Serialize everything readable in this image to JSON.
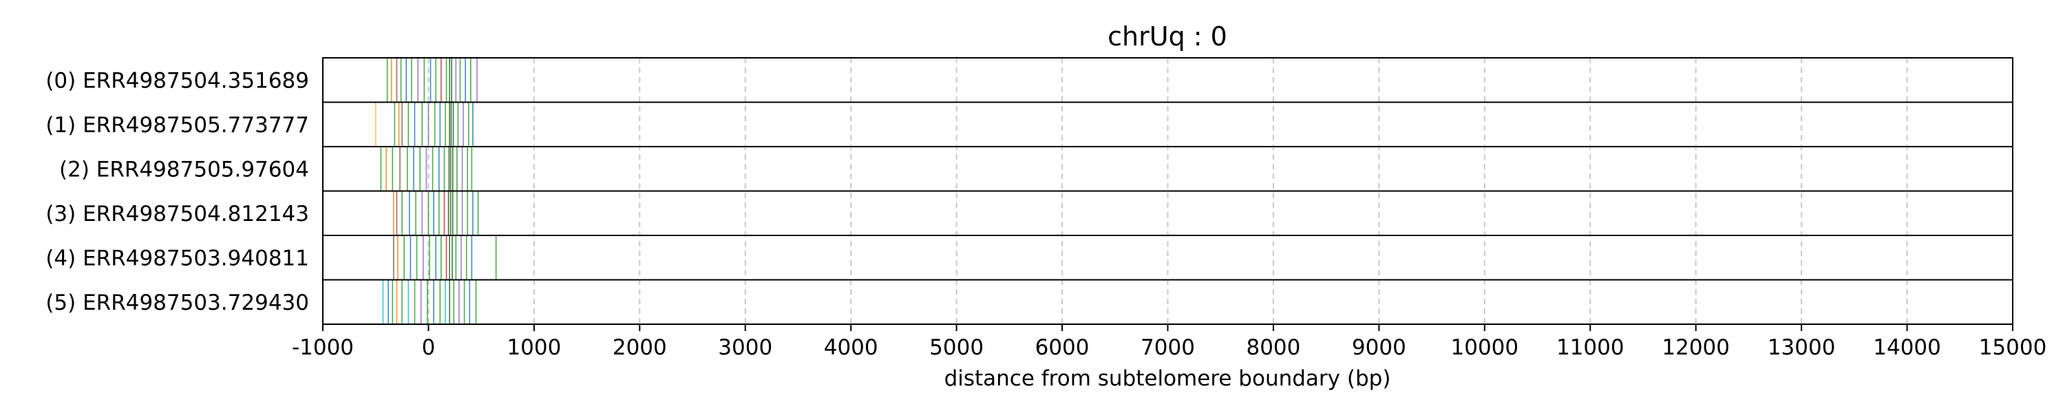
{
  "chart_data": {
    "type": "event-track",
    "title": "chrUq : 0",
    "xlabel": "distance from subtelomere boundary (bp)",
    "ylabel": "",
    "xlim": [
      -1000,
      15000
    ],
    "xticks": [
      -1000,
      0,
      1000,
      2000,
      3000,
      4000,
      5000,
      6000,
      7000,
      8000,
      9000,
      10000,
      11000,
      12000,
      13000,
      14000,
      15000
    ],
    "grid": "x-dashed",
    "reads": [
      {
        "label": "(0) ERR4987504.351689",
        "events": [
          {
            "x": -390,
            "color": "#2ca02c"
          },
          {
            "x": -350,
            "color": "#ff7f0e"
          },
          {
            "x": -300,
            "color": "#8c564b"
          },
          {
            "x": -260,
            "color": "#2ca02c"
          },
          {
            "x": -210,
            "color": "#1f77b4"
          },
          {
            "x": -160,
            "color": "#2ca02c"
          },
          {
            "x": -100,
            "color": "#9467bd"
          },
          {
            "x": -40,
            "color": "#2ca02c"
          },
          {
            "x": 20,
            "color": "#1f77b4"
          },
          {
            "x": 70,
            "color": "#2ca02c"
          },
          {
            "x": 120,
            "color": "#d62728"
          },
          {
            "x": 170,
            "color": "#2ca02c"
          },
          {
            "x": 200,
            "color": "#1b5e20"
          },
          {
            "x": 220,
            "color": "#1b5e20"
          },
          {
            "x": 260,
            "color": "#9467bd"
          },
          {
            "x": 300,
            "color": "#2ca02c"
          },
          {
            "x": 350,
            "color": "#1f77b4"
          },
          {
            "x": 400,
            "color": "#2ca02c"
          },
          {
            "x": 460,
            "color": "#9467bd"
          }
        ]
      },
      {
        "label": "(1) ERR4987505.773777",
        "events": [
          {
            "x": -500,
            "color": "#ffbb33"
          },
          {
            "x": -320,
            "color": "#2ca02c"
          },
          {
            "x": -280,
            "color": "#ff7f0e"
          },
          {
            "x": -250,
            "color": "#8c564b"
          },
          {
            "x": -190,
            "color": "#2ca02c"
          },
          {
            "x": -130,
            "color": "#1f77b4"
          },
          {
            "x": -60,
            "color": "#2ca02c"
          },
          {
            "x": 0,
            "color": "#9467bd"
          },
          {
            "x": 60,
            "color": "#2ca02c"
          },
          {
            "x": 110,
            "color": "#1f77b4"
          },
          {
            "x": 160,
            "color": "#2ca02c"
          },
          {
            "x": 200,
            "color": "#1b5e20"
          },
          {
            "x": 215,
            "color": "#1b5e20"
          },
          {
            "x": 235,
            "color": "#1b5e20"
          },
          {
            "x": 280,
            "color": "#2ca02c"
          },
          {
            "x": 330,
            "color": "#9467bd"
          },
          {
            "x": 380,
            "color": "#2ca02c"
          },
          {
            "x": 420,
            "color": "#1f77b4"
          }
        ]
      },
      {
        "label": "(2) ERR4987505.97604",
        "events": [
          {
            "x": -450,
            "color": "#2ca02c"
          },
          {
            "x": -400,
            "color": "#ff7f0e"
          },
          {
            "x": -340,
            "color": "#2ca02c"
          },
          {
            "x": -270,
            "color": "#8c564b"
          },
          {
            "x": -200,
            "color": "#2ca02c"
          },
          {
            "x": -140,
            "color": "#1f77b4"
          },
          {
            "x": -80,
            "color": "#2ca02c"
          },
          {
            "x": -20,
            "color": "#9467bd"
          },
          {
            "x": 40,
            "color": "#2ca02c"
          },
          {
            "x": 100,
            "color": "#1f77b4"
          },
          {
            "x": 150,
            "color": "#2ca02c"
          },
          {
            "x": 195,
            "color": "#1b5e20"
          },
          {
            "x": 210,
            "color": "#1b5e20"
          },
          {
            "x": 230,
            "color": "#1b5e20"
          },
          {
            "x": 270,
            "color": "#2ca02c"
          },
          {
            "x": 320,
            "color": "#9467bd"
          },
          {
            "x": 370,
            "color": "#2ca02c"
          },
          {
            "x": 410,
            "color": "#2ca02c"
          }
        ]
      },
      {
        "label": "(3) ERR4987504.812143",
        "events": [
          {
            "x": -330,
            "color": "#ff7f0e"
          },
          {
            "x": -300,
            "color": "#8c564b"
          },
          {
            "x": -250,
            "color": "#2ca02c"
          },
          {
            "x": -180,
            "color": "#1f77b4"
          },
          {
            "x": -120,
            "color": "#2ca02c"
          },
          {
            "x": -60,
            "color": "#9467bd"
          },
          {
            "x": 0,
            "color": "#2ca02c"
          },
          {
            "x": 50,
            "color": "#1f77b4"
          },
          {
            "x": 100,
            "color": "#2ca02c"
          },
          {
            "x": 150,
            "color": "#d62728"
          },
          {
            "x": 190,
            "color": "#1b5e20"
          },
          {
            "x": 210,
            "color": "#1b5e20"
          },
          {
            "x": 230,
            "color": "#1b5e20"
          },
          {
            "x": 270,
            "color": "#2ca02c"
          },
          {
            "x": 320,
            "color": "#9467bd"
          },
          {
            "x": 370,
            "color": "#2ca02c"
          },
          {
            "x": 420,
            "color": "#1f77b4"
          },
          {
            "x": 470,
            "color": "#2ca02c"
          }
        ]
      },
      {
        "label": "(4) ERR4987503.940811",
        "events": [
          {
            "x": -330,
            "color": "#8c564b"
          },
          {
            "x": -290,
            "color": "#ff7f0e"
          },
          {
            "x": -230,
            "color": "#2ca02c"
          },
          {
            "x": -170,
            "color": "#1f77b4"
          },
          {
            "x": -110,
            "color": "#2ca02c"
          },
          {
            "x": -50,
            "color": "#9467bd"
          },
          {
            "x": 10,
            "color": "#2ca02c"
          },
          {
            "x": 70,
            "color": "#1f77b4"
          },
          {
            "x": 120,
            "color": "#2ca02c"
          },
          {
            "x": 170,
            "color": "#d62728"
          },
          {
            "x": 200,
            "color": "#1b5e20"
          },
          {
            "x": 225,
            "color": "#1b5e20"
          },
          {
            "x": 260,
            "color": "#2ca02c"
          },
          {
            "x": 310,
            "color": "#9467bd"
          },
          {
            "x": 360,
            "color": "#2ca02c"
          },
          {
            "x": 410,
            "color": "#1f77b4"
          },
          {
            "x": 640,
            "color": "#2ca02c"
          }
        ]
      },
      {
        "label": "(5) ERR4987503.729430",
        "events": [
          {
            "x": -430,
            "color": "#17becf"
          },
          {
            "x": -380,
            "color": "#1f77b4"
          },
          {
            "x": -340,
            "color": "#2ca02c"
          },
          {
            "x": -300,
            "color": "#ff7f0e"
          },
          {
            "x": -250,
            "color": "#2ca02c"
          },
          {
            "x": -190,
            "color": "#17becf"
          },
          {
            "x": -130,
            "color": "#2ca02c"
          },
          {
            "x": -70,
            "color": "#9467bd"
          },
          {
            "x": -10,
            "color": "#2ca02c"
          },
          {
            "x": 50,
            "color": "#1f77b4"
          },
          {
            "x": 110,
            "color": "#2ca02c"
          },
          {
            "x": 160,
            "color": "#17becf"
          },
          {
            "x": 200,
            "color": "#1b5e20"
          },
          {
            "x": 240,
            "color": "#2ca02c"
          },
          {
            "x": 290,
            "color": "#9467bd"
          },
          {
            "x": 340,
            "color": "#2ca02c"
          },
          {
            "x": 390,
            "color": "#1f77b4"
          },
          {
            "x": 450,
            "color": "#2ca02c"
          }
        ]
      }
    ]
  }
}
